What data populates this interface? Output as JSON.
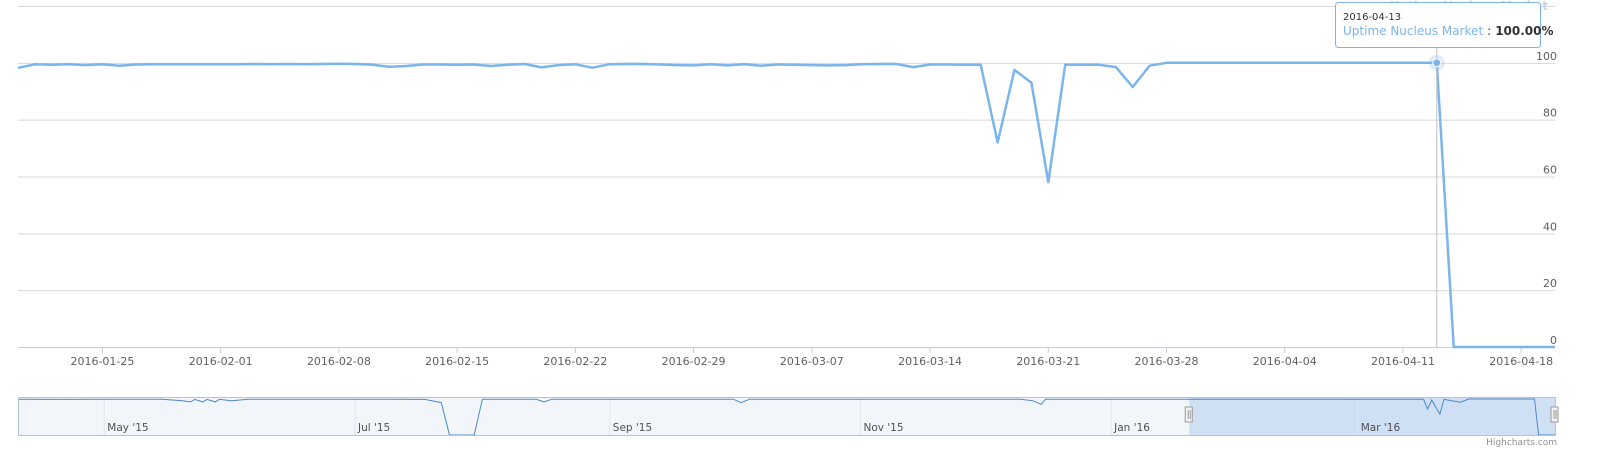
{
  "chart_data": {
    "type": "line",
    "legend": "top-right",
    "series": [
      {
        "name": "Uptime Nucleus Market",
        "color": "#7cb5ec",
        "x": [
          "2016-01-20",
          "2016-01-21",
          "2016-01-22",
          "2016-01-23",
          "2016-01-24",
          "2016-01-25",
          "2016-01-26",
          "2016-01-27",
          "2016-01-28",
          "2016-01-29",
          "2016-01-30",
          "2016-01-31",
          "2016-02-01",
          "2016-02-02",
          "2016-02-03",
          "2016-02-04",
          "2016-02-05",
          "2016-02-06",
          "2016-02-07",
          "2016-02-08",
          "2016-02-09",
          "2016-02-10",
          "2016-02-11",
          "2016-02-12",
          "2016-02-13",
          "2016-02-14",
          "2016-02-15",
          "2016-02-16",
          "2016-02-17",
          "2016-02-18",
          "2016-02-19",
          "2016-02-20",
          "2016-02-21",
          "2016-02-22",
          "2016-02-23",
          "2016-02-24",
          "2016-02-25",
          "2016-02-26",
          "2016-02-27",
          "2016-02-28",
          "2016-02-29",
          "2016-03-01",
          "2016-03-02",
          "2016-03-03",
          "2016-03-04",
          "2016-03-05",
          "2016-03-06",
          "2016-03-07",
          "2016-03-08",
          "2016-03-09",
          "2016-03-10",
          "2016-03-11",
          "2016-03-12",
          "2016-03-13",
          "2016-03-14",
          "2016-03-15",
          "2016-03-16",
          "2016-03-17",
          "2016-03-18",
          "2016-03-19",
          "2016-03-20",
          "2016-03-21",
          "2016-03-22",
          "2016-03-23",
          "2016-03-24",
          "2016-03-25",
          "2016-03-26",
          "2016-03-27",
          "2016-03-28",
          "2016-03-29",
          "2016-03-30",
          "2016-03-31",
          "2016-04-01",
          "2016-04-02",
          "2016-04-03",
          "2016-04-04",
          "2016-04-05",
          "2016-04-06",
          "2016-04-07",
          "2016-04-08",
          "2016-04-09",
          "2016-04-10",
          "2016-04-11",
          "2016-04-12",
          "2016-04-13",
          "2016-04-14",
          "2016-04-15",
          "2016-04-16",
          "2016-04-17",
          "2016-04-18",
          "2016-04-19",
          "2016-04-20"
        ],
        "values": [
          98.2,
          99.5,
          99.3,
          99.5,
          99.2,
          99.5,
          99.0,
          99.4,
          99.5,
          99.5,
          99.5,
          99.5,
          99.5,
          99.5,
          99.6,
          99.5,
          99.6,
          99.5,
          99.6,
          99.7,
          99.6,
          99.3,
          98.6,
          98.9,
          99.4,
          99.4,
          99.3,
          99.4,
          98.9,
          99.3,
          99.6,
          98.4,
          99.2,
          99.5,
          98.3,
          99.5,
          99.6,
          99.6,
          99.4,
          99.2,
          99.1,
          99.5,
          99.1,
          99.5,
          99.0,
          99.4,
          99.3,
          99.2,
          99.1,
          99.2,
          99.5,
          99.6,
          99.6,
          98.5,
          99.4,
          99.4,
          99.3,
          99.3,
          72,
          97.5,
          93,
          58,
          99.3,
          99.3,
          99.3,
          98.5,
          91.5,
          99,
          100,
          100,
          100,
          100,
          100,
          100,
          100,
          100,
          100,
          100,
          100,
          100,
          100,
          100,
          100,
          100,
          100,
          0,
          0,
          0,
          0,
          0,
          0,
          0
        ]
      }
    ],
    "xlim": [
      "2016-01-20",
      "2016-04-20"
    ],
    "xticks": [
      "2016-01-25",
      "2016-02-01",
      "2016-02-08",
      "2016-02-15",
      "2016-02-22",
      "2016-02-29",
      "2016-03-07",
      "2016-03-14",
      "2016-03-21",
      "2016-03-28",
      "2016-04-04",
      "2016-04-11",
      "2016-04-18"
    ],
    "ylim": [
      0,
      120
    ],
    "yticks": [
      0,
      20,
      40,
      60,
      80,
      100
    ],
    "grid": true,
    "tooltip": {
      "point": 84,
      "x": "2016-04-13",
      "separator": ":",
      "value_label": "100.00%"
    },
    "navigator": {
      "xlim": [
        "2015-04-10",
        "2016-04-18"
      ],
      "ylim": [
        0,
        100
      ],
      "xticks": [
        {
          "value": "2015-05-01",
          "label": "May '15"
        },
        {
          "value": "2015-07-01",
          "label": "Jul '15"
        },
        {
          "value": "2015-09-01",
          "label": "Sep '15"
        },
        {
          "value": "2015-11-01",
          "label": "Nov '15"
        },
        {
          "value": "2016-01-01",
          "label": "Jan '16"
        },
        {
          "value": "2016-03-01",
          "label": "Mar '16"
        }
      ],
      "x": [
        "2015-04-10",
        "2015-04-20",
        "2015-05-01",
        "2015-05-15",
        "2015-05-20",
        "2015-05-22",
        "2015-05-23",
        "2015-05-25",
        "2015-05-26",
        "2015-05-28",
        "2015-05-29",
        "2015-06-01",
        "2015-06-05",
        "2015-06-20",
        "2015-07-10",
        "2015-07-18",
        "2015-07-22",
        "2015-07-24",
        "2015-07-30",
        "2015-08-01",
        "2015-08-14",
        "2015-08-16",
        "2015-08-18",
        "2015-09-15",
        "2015-10-01",
        "2015-10-03",
        "2015-10-05",
        "2015-11-10",
        "2015-12-10",
        "2015-12-13",
        "2015-12-15",
        "2015-12-16",
        "2016-01-15",
        "2016-02-20",
        "2016-03-17",
        "2016-03-18",
        "2016-03-19",
        "2016-03-21",
        "2016-03-22",
        "2016-03-26",
        "2016-03-28",
        "2016-04-13",
        "2016-04-14",
        "2016-04-18"
      ],
      "values": [
        99.5,
        99,
        99.5,
        99.3,
        95,
        92,
        99,
        92,
        99,
        92,
        99,
        95,
        99.5,
        99.4,
        99.5,
        99.0,
        90,
        0,
        0,
        99.5,
        99.3,
        92,
        99.5,
        99.4,
        99.5,
        90,
        99.5,
        99.4,
        99.5,
        95,
        85,
        99.3,
        99.4,
        99.2,
        99.3,
        72,
        97,
        58,
        99,
        91,
        100,
        100,
        0,
        0
      ]
    },
    "credits": "Highcharts.com"
  }
}
